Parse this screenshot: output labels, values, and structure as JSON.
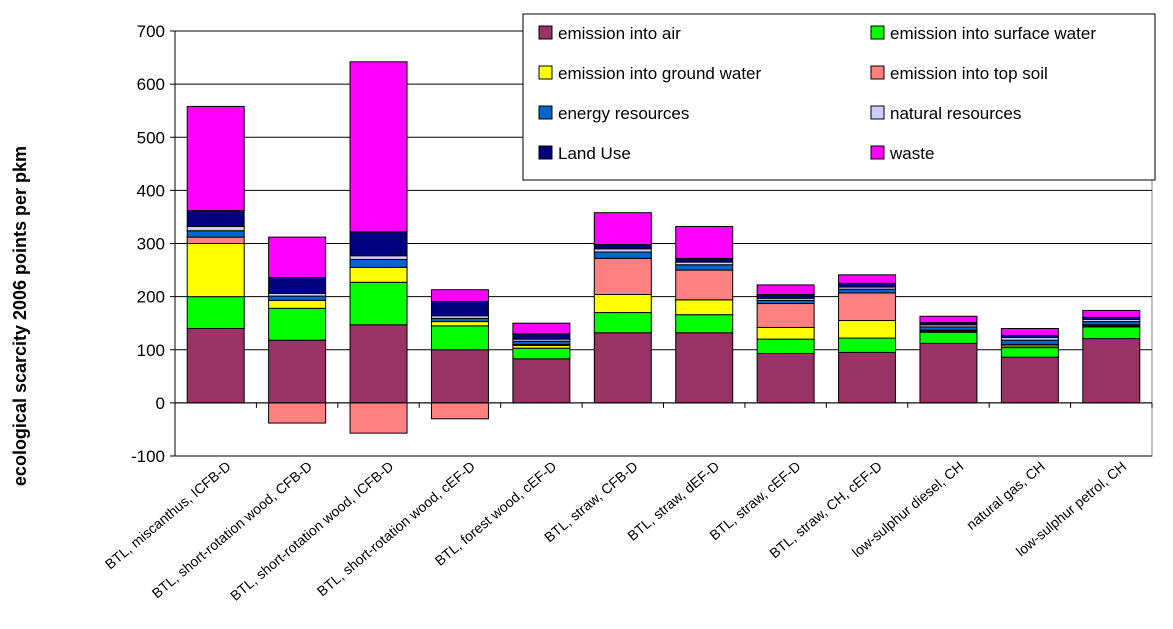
{
  "chart_data": {
    "type": "bar",
    "stacked": true,
    "title": "",
    "xlabel": "",
    "ylabel": "ecological scarcity 2006 points per pkm",
    "ylim": [
      -100,
      700
    ],
    "yticks": [
      -100,
      0,
      100,
      200,
      300,
      400,
      500,
      600,
      700
    ],
    "grid": "horizontal",
    "legend_position": "top-right",
    "categories": [
      "BTL, miscanthus, ICFB-D",
      "BTL, short-rotation wood, CFB-D",
      "BTL, short-rotation wood, ICFB-D",
      "BTL, short-rotation wood, cEF-D",
      "BTL, forest wood, cEF-D",
      "BTL, straw, CFB-D",
      "BTL, straw, dEF-D",
      "BTL, straw, cEF-D",
      "BTL, straw, CH, cEF-D",
      "low-sulphur diesel, CH",
      "natural gas, CH",
      "low-sulphur petrol, CH"
    ],
    "series": [
      {
        "name": "emission into air",
        "color": "#993366",
        "values": [
          140,
          118,
          147,
          100,
          83,
          132,
          132,
          93,
          95,
          112,
          86,
          121
        ]
      },
      {
        "name": "emission into surface water",
        "color": "#00FF00",
        "values": [
          60,
          60,
          80,
          45,
          20,
          38,
          34,
          27,
          27,
          21,
          18,
          22
        ]
      },
      {
        "name": "emission into ground water",
        "color": "#FFFF00",
        "values": [
          100,
          15,
          28,
          8,
          5,
          34,
          28,
          22,
          33,
          2,
          3,
          2
        ]
      },
      {
        "name": "emission into top soil",
        "color": "#FF8080",
        "values": [
          12,
          -38,
          -57,
          -30,
          2,
          68,
          56,
          45,
          52,
          2,
          3,
          2
        ]
      },
      {
        "name": "energy resources",
        "color": "#0066CC",
        "values": [
          12,
          8,
          15,
          6,
          6,
          12,
          10,
          6,
          7,
          6,
          8,
          6
        ]
      },
      {
        "name": "natural resources",
        "color": "#CCCCFF",
        "values": [
          8,
          5,
          7,
          5,
          4,
          6,
          5,
          4,
          4,
          4,
          5,
          4
        ]
      },
      {
        "name": "Land Use",
        "color": "#000080",
        "values": [
          30,
          30,
          45,
          27,
          10,
          8,
          7,
          7,
          7,
          4,
          4,
          4
        ]
      },
      {
        "name": "waste",
        "color": "#FF00FF",
        "values": [
          196,
          76,
          320,
          22,
          20,
          60,
          60,
          18,
          16,
          12,
          13,
          13
        ]
      }
    ]
  }
}
